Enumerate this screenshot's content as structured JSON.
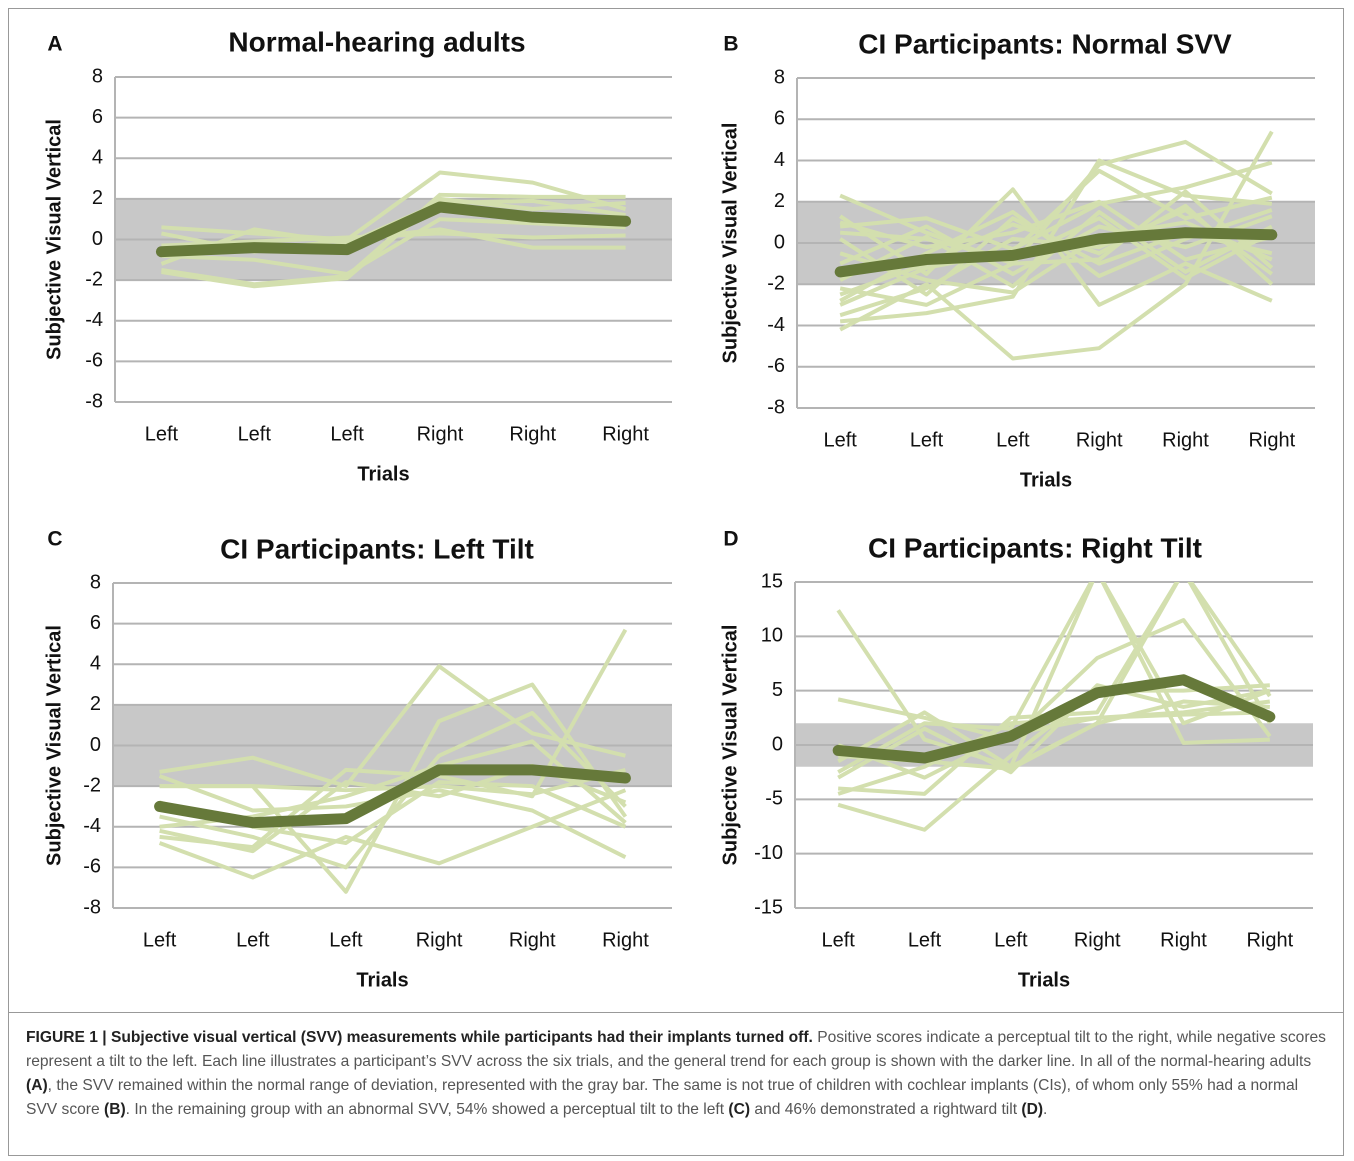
{
  "chart_data": [
    {
      "type": "line",
      "label": "A",
      "title": "Normal-hearing adults",
      "y_label": "Subjective Visual Vertical",
      "x_label": "Trials",
      "categories": [
        "Left",
        "Left",
        "Left",
        "Right",
        "Right",
        "Right"
      ],
      "ylim": [
        -8,
        8
      ],
      "yticks": [
        -8,
        -6,
        -4,
        -2,
        0,
        2,
        4,
        6,
        8
      ],
      "grid": true,
      "normal_range": [
        -2,
        2
      ],
      "normal_range_color": "#c8c8c8",
      "series": [
        {
          "color": "#d3dfae",
          "values": [
            0.6,
            0.3,
            0,
            3.3,
            2.8,
            1.5
          ]
        },
        {
          "color": "#d3dfae",
          "values": [
            -1.5,
            -2.2,
            -1.8,
            2.2,
            2.1,
            2.1
          ]
        },
        {
          "color": "#d3dfae",
          "values": [
            -1.2,
            0.5,
            -0.2,
            1.8,
            1.9,
            1.2
          ]
        },
        {
          "color": "#d3dfae",
          "values": [
            0.3,
            -0.6,
            0,
            0.5,
            -0.4,
            -0.4
          ]
        },
        {
          "color": "#d3dfae",
          "values": [
            -0.8,
            -1,
            -1.7,
            1,
            0.8,
            0.6
          ]
        },
        {
          "color": "#d3dfae",
          "values": [
            -0.3,
            -0.1,
            0.1,
            0.3,
            0.1,
            0.2
          ]
        },
        {
          "color": "#d3dfae",
          "values": [
            -1.6,
            -2.3,
            -1.9,
            2,
            1.5,
            1.8
          ]
        }
      ],
      "trend": {
        "color": "#66793a",
        "values": [
          -0.6,
          -0.4,
          -0.5,
          1.6,
          1.1,
          0.9
        ]
      }
    },
    {
      "type": "line",
      "label": "B",
      "title": "CI Participants: Normal SVV",
      "y_label": "Subjective Visual Vertical",
      "x_label": "Trials",
      "categories": [
        "Left",
        "Left",
        "Left",
        "Right",
        "Right",
        "Right"
      ],
      "ylim": [
        -8,
        8
      ],
      "yticks": [
        -8,
        -6,
        -4,
        -2,
        0,
        2,
        4,
        6,
        8
      ],
      "grid": true,
      "normal_range": [
        -2,
        2
      ],
      "normal_range_color": "#c8c8c8",
      "series": [
        {
          "color": "#d3dfae",
          "values": [
            2.3,
            0.5,
            -1,
            3.8,
            4.9,
            2.4
          ]
        },
        {
          "color": "#d3dfae",
          "values": [
            -4.2,
            -2,
            -5.6,
            -5.1,
            -2,
            5.4
          ]
        },
        {
          "color": "#d3dfae",
          "values": [
            1.3,
            -1.5,
            2.6,
            -3,
            -1,
            -2.8
          ]
        },
        {
          "color": "#d3dfae",
          "values": [
            -3.8,
            -3.4,
            -2.6,
            4,
            2.3,
            1.9
          ]
        },
        {
          "color": "#d3dfae",
          "values": [
            0.8,
            1.2,
            -0.3,
            1.9,
            2.7,
            3.9
          ]
        },
        {
          "color": "#d3dfae",
          "values": [
            -2.5,
            -1,
            0.9,
            -0.5,
            1.8,
            -2
          ]
        },
        {
          "color": "#d3dfae",
          "values": [
            -1.8,
            0.3,
            -2.1,
            1.5,
            -1.4,
            0.8
          ]
        },
        {
          "color": "#d3dfae",
          "values": [
            0.2,
            -2.5,
            1.2,
            -1,
            0.5,
            -0.5
          ]
        },
        {
          "color": "#d3dfae",
          "values": [
            -3,
            -1.2,
            -0.4,
            3.5,
            1.2,
            2.2
          ]
        },
        {
          "color": "#d3dfae",
          "values": [
            -1,
            0.8,
            -1.5,
            0.8,
            -0.2,
            1.3
          ]
        },
        {
          "color": "#d3dfae",
          "values": [
            -2.2,
            -3,
            -1,
            -0.8,
            2.5,
            -1.2
          ]
        },
        {
          "color": "#d3dfae",
          "values": [
            1,
            -0.2,
            0.5,
            2,
            -0.8,
            0.3
          ]
        },
        {
          "color": "#d3dfae",
          "values": [
            -0.5,
            -1.8,
            -2.4,
            0.3,
            1,
            -0.8
          ]
        },
        {
          "color": "#d3dfae",
          "values": [
            -2.8,
            -0.5,
            1.5,
            -1.6,
            0.2,
            1.6
          ]
        },
        {
          "color": "#d3dfae",
          "values": [
            0.5,
            0.2,
            -0.8,
            1.2,
            -1.7,
            0.5
          ]
        },
        {
          "color": "#d3dfae",
          "values": [
            -3.5,
            -2.2,
            0.2,
            -0.2,
            1.6,
            -1.5
          ]
        }
      ],
      "trend": {
        "color": "#66793a",
        "values": [
          -1.4,
          -0.8,
          -0.6,
          0.2,
          0.5,
          0.4
        ]
      }
    },
    {
      "type": "line",
      "label": "C",
      "title": "CI Participants: Left Tilt",
      "y_label": "Subjective Visual Vertical",
      "x_label": "Trials",
      "categories": [
        "Left",
        "Left",
        "Left",
        "Right",
        "Right",
        "Right"
      ],
      "ylim": [
        -8,
        8
      ],
      "yticks": [
        -8,
        -6,
        -4,
        -2,
        0,
        2,
        4,
        6,
        8
      ],
      "grid": true,
      "normal_range": [
        -2,
        2
      ],
      "normal_range_color": "#c8c8c8",
      "series": [
        {
          "color": "#d3dfae",
          "values": [
            -1.3,
            -0.6,
            -2,
            3.9,
            0.6,
            -0.5
          ]
        },
        {
          "color": "#d3dfae",
          "values": [
            -4.8,
            -6.5,
            -4.5,
            -5.8,
            -4,
            -2.2
          ]
        },
        {
          "color": "#d3dfae",
          "values": [
            -2,
            -2,
            -7.2,
            1.2,
            3,
            -3.5
          ]
        },
        {
          "color": "#d3dfae",
          "values": [
            -4.5,
            -5,
            -1.2,
            -1.5,
            -2.5,
            5.7
          ]
        },
        {
          "color": "#d3dfae",
          "values": [
            -1.5,
            -3.2,
            -3,
            -2.2,
            -3.2,
            -5.5
          ]
        },
        {
          "color": "#d3dfae",
          "values": [
            -3.5,
            -4.5,
            -6,
            -0.5,
            1.6,
            -3
          ]
        },
        {
          "color": "#d3dfae",
          "values": [
            -4.2,
            -5.2,
            -1.8,
            -2.5,
            -1,
            -2.8
          ]
        },
        {
          "color": "#d3dfae",
          "values": [
            -2.8,
            -4,
            -4.8,
            -1.8,
            -2,
            -4
          ]
        },
        {
          "color": "#d3dfae",
          "values": [
            -2,
            -2,
            -2.2,
            -2,
            -2.4,
            -1.2
          ]
        },
        {
          "color": "#d3dfae",
          "values": [
            -4,
            -3.5,
            -2.5,
            -1,
            0.2,
            -3.8
          ]
        }
      ],
      "trend": {
        "color": "#66793a",
        "values": [
          -3,
          -3.8,
          -3.6,
          -1.2,
          -1.2,
          -1.6
        ]
      }
    },
    {
      "type": "line",
      "label": "D",
      "title": "CI Participants: Right Tilt",
      "y_label": "Subjective Visual Vertical",
      "x_label": "Trials",
      "categories": [
        "Left",
        "Left",
        "Left",
        "Right",
        "Right",
        "Right"
      ],
      "ylim": [
        -15,
        15
      ],
      "yticks": [
        -15,
        -10,
        -5,
        0,
        5,
        10,
        15
      ],
      "grid": true,
      "normal_range": [
        -2,
        2
      ],
      "normal_range_color": "#c8c8c8",
      "series": [
        {
          "color": "#d3dfae",
          "values": [
            12.4,
            0.5,
            -2,
            16,
            0.2,
            0.5
          ]
        },
        {
          "color": "#d3dfae",
          "values": [
            4.2,
            2.5,
            0.5,
            8,
            11.5,
            0.8
          ]
        },
        {
          "color": "#d3dfae",
          "values": [
            -5.5,
            -7.8,
            -1,
            5,
            5,
            5.5
          ]
        },
        {
          "color": "#d3dfae",
          "values": [
            -4,
            -4.5,
            2.5,
            3,
            16,
            4.5
          ]
        },
        {
          "color": "#d3dfae",
          "values": [
            -1.5,
            3,
            -2,
            2,
            16,
            2
          ]
        },
        {
          "color": "#d3dfae",
          "values": [
            -2.5,
            2,
            1.5,
            16,
            2,
            5
          ]
        },
        {
          "color": "#d3dfae",
          "values": [
            -1,
            -1.5,
            -2.2,
            2,
            4,
            3.5
          ]
        },
        {
          "color": "#d3dfae",
          "values": [
            0,
            -3,
            1,
            2.5,
            3,
            4
          ]
        },
        {
          "color": "#d3dfae",
          "values": [
            -3,
            1.5,
            -2.5,
            5.5,
            3.5,
            5
          ]
        },
        {
          "color": "#d3dfae",
          "values": [
            -4.5,
            -2,
            2,
            2.5,
            2.8,
            3
          ]
        }
      ],
      "trend": {
        "color": "#66793a",
        "values": [
          -0.5,
          -1.2,
          0.8,
          4.8,
          6,
          2.6
        ]
      }
    }
  ],
  "caption": [
    {
      "bold": true,
      "text": "FIGURE 1 | Subjective visual vertical (SVV) measurements while participants had their implants turned off."
    },
    {
      "bold": false,
      "text": " Positive scores indicate a perceptual tilt to the right, while negative scores represent a tilt to the left. Each line illustrates a participant’s SVV across the six trials, and the general trend for each group is shown with the darker line. In all of the normal-hearing adults "
    },
    {
      "bold": true,
      "text": "(A)"
    },
    {
      "bold": false,
      "text": ", the SVV remained within the normal range of deviation, represented with the gray bar. The same is not true of children with cochlear implants (CIs), of whom only 55% had a normal SVV score "
    },
    {
      "bold": true,
      "text": "(B)"
    },
    {
      "bold": false,
      "text": ". In the remaining group with an abnormal SVV, 54% showed a perceptual tilt to the left "
    },
    {
      "bold": true,
      "text": "(C)"
    },
    {
      "bold": false,
      "text": " and 46% demonstrated a rightward tilt "
    },
    {
      "bold": true,
      "text": "(D)"
    },
    {
      "bold": false,
      "text": "."
    }
  ]
}
